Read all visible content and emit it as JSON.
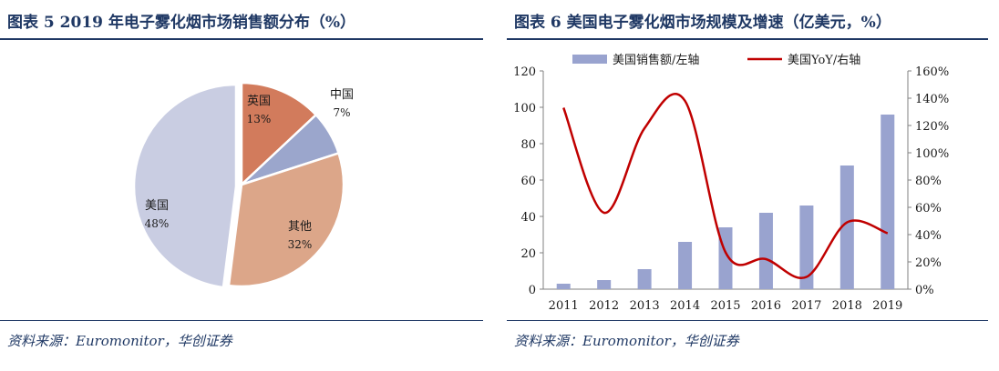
{
  "figures": [
    {
      "title": "图表 5   2019 年电子雾化烟市场销售额分布（%）",
      "source": "资料来源：Euromonitor，华创证券",
      "chart_data": {
        "type": "pie",
        "slices": [
          {
            "name": "英国",
            "value": 13,
            "label": "13%",
            "color": "#d27b5c"
          },
          {
            "name": "中国",
            "value": 7,
            "label": "7%",
            "color": "#9ba6cc"
          },
          {
            "name": "其他",
            "value": 32,
            "label": "32%",
            "color": "#dca689"
          },
          {
            "name": "美国",
            "value": 48,
            "label": "48%",
            "color": "#c9cde2"
          }
        ]
      }
    },
    {
      "title": "图表 6   美国电子雾化烟市场规模及增速（亿美元，%）",
      "source": "资料来源：Euromonitor，华创证券",
      "chart_data": {
        "type": "bar",
        "categories": [
          "2011",
          "2012",
          "2013",
          "2014",
          "2015",
          "2016",
          "2017",
          "2018",
          "2019"
        ],
        "series": [
          {
            "name": "美国销售额/左轴",
            "type": "bar",
            "axis": "left",
            "color": "#99a3cf",
            "values": [
              3,
              5,
              11,
              26,
              34,
              42,
              46,
              68,
              96
            ]
          },
          {
            "name": "美国YoY/右轴",
            "type": "line",
            "axis": "right",
            "color": "#c00000",
            "values": [
              133,
              56,
              118,
              138,
              27,
              22,
              9,
              49,
              41
            ]
          }
        ],
        "left_axis": {
          "ylim": [
            0,
            120
          ],
          "ticks": [
            "0",
            "20",
            "40",
            "60",
            "80",
            "100",
            "120"
          ]
        },
        "right_axis": {
          "ylim": [
            0,
            160
          ],
          "ticks": [
            "0%",
            "20%",
            "40%",
            "60%",
            "80%",
            "100%",
            "120%",
            "140%",
            "160%"
          ]
        },
        "legend": "top"
      }
    }
  ]
}
